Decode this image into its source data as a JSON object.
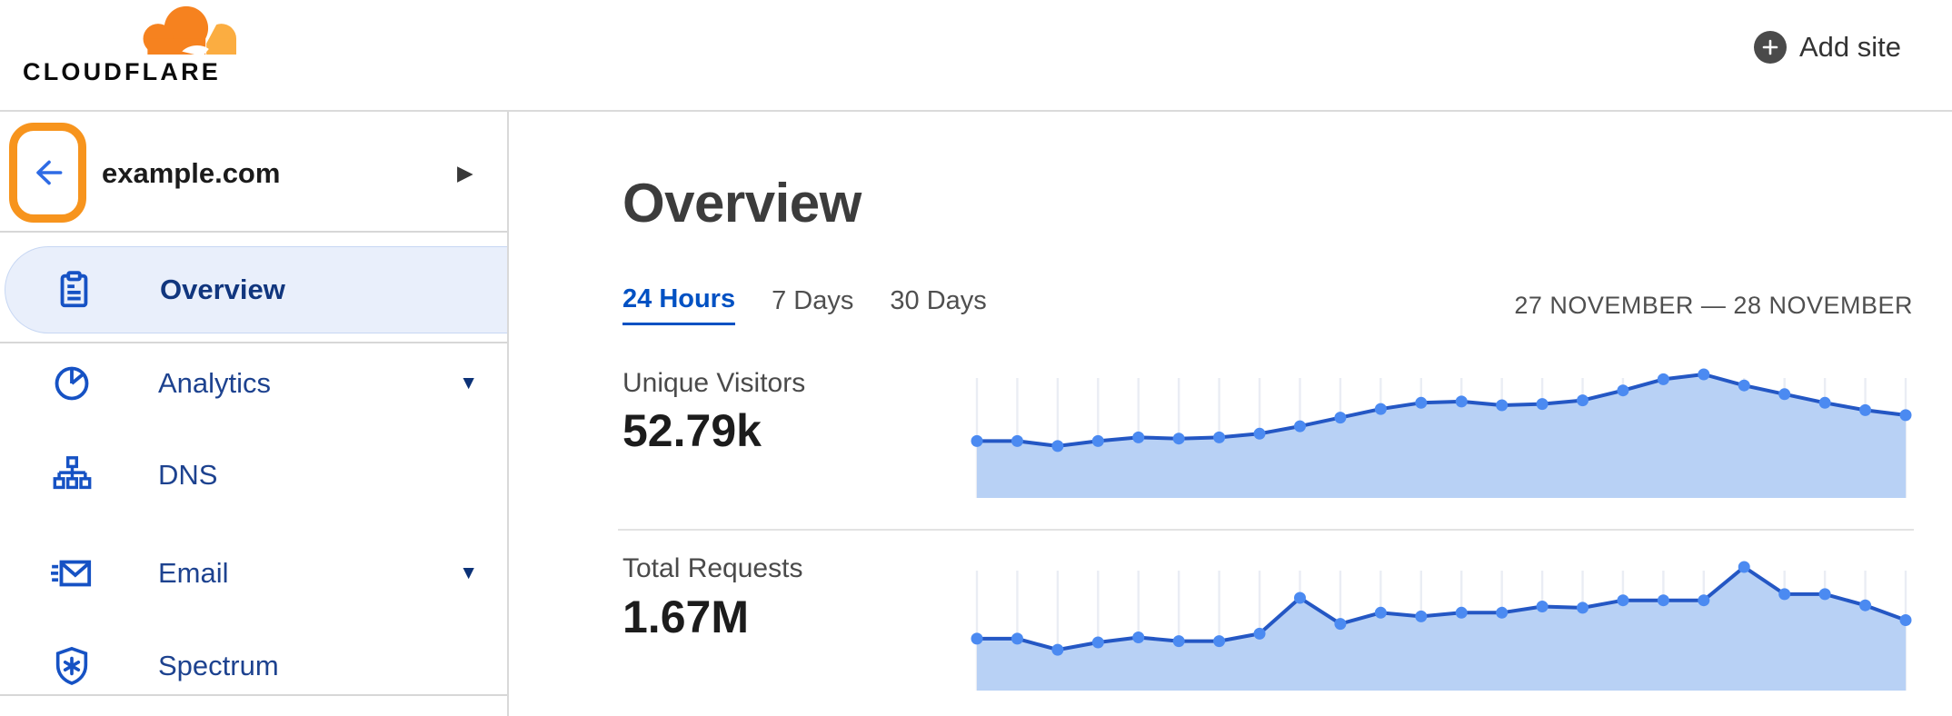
{
  "header": {
    "logo_text": "CLOUDFLARE",
    "add_site": {
      "label": "Add site",
      "icon": "plus-circle-icon"
    }
  },
  "sidebar": {
    "site_switcher": {
      "back_icon": "arrow-left-icon",
      "site_name": "example.com",
      "expand_icon": "caret-right-icon"
    },
    "items": [
      {
        "label": "Overview",
        "icon": "clipboard-icon",
        "active": true,
        "expandable": false
      },
      {
        "label": "Analytics",
        "icon": "pie-chart-icon",
        "active": false,
        "expandable": true
      },
      {
        "label": "DNS",
        "icon": "dns-tree-icon",
        "active": false,
        "expandable": false
      },
      {
        "label": "Email",
        "icon": "email-icon",
        "active": false,
        "expandable": true
      },
      {
        "label": "Spectrum",
        "icon": "shield-asterisk-icon",
        "active": false,
        "expandable": false
      }
    ]
  },
  "main": {
    "title": "Overview",
    "time_tabs": [
      {
        "label": "24 Hours",
        "active": true
      },
      {
        "label": "7 Days",
        "active": false
      },
      {
        "label": "30 Days",
        "active": false
      }
    ],
    "date_range": "27 NOVEMBER — 28 NOVEMBER",
    "metrics": [
      {
        "label": "Unique Visitors",
        "value": "52.79k"
      },
      {
        "label": "Total Requests",
        "value": "1.67M"
      }
    ]
  },
  "annotation": {
    "type": "highlight-box",
    "target": "back-button",
    "color": "#F7941D"
  },
  "icons": {
    "caret_right": "▶",
    "caret_down": "▼"
  },
  "colors": {
    "brand_orange": "#F6821F",
    "brand_orange_light": "#FBAD41",
    "highlight_orange": "#F7941D",
    "link_blue": "#0051C3",
    "nav_text": "#1D428F",
    "nav_text_active": "#11367E",
    "active_pill_bg": "#E9EFFB",
    "active_pill_border": "#C7D7F3",
    "chart_line": "#2457C4",
    "chart_dot": "#4B8AF1",
    "chart_fill": "#B8D1F5",
    "chart_grid": "#EAEDF4",
    "divider": "#D9D9D9"
  },
  "chart_data": [
    {
      "type": "area",
      "title": "Unique Visitors",
      "total_label": "52.79k",
      "x_desc": "24-hour window (27 November – 28 November), 24 evenly spaced intervals",
      "y_desc": "relative unique visitors per interval, % of peak (no axis labels shown)",
      "values": [
        46,
        46,
        42,
        46,
        49,
        48,
        49,
        52,
        58,
        65,
        72,
        77,
        78,
        75,
        76,
        79,
        87,
        96,
        100,
        91,
        84,
        77,
        71,
        67
      ],
      "grid": true,
      "dots": true,
      "legend": false
    },
    {
      "type": "area",
      "title": "Total Requests",
      "total_label": "1.67M",
      "x_desc": "24-hour window (27 November – 28 November), 24 evenly spaced intervals",
      "y_desc": "relative requests per interval, % of peak (no axis labels shown)",
      "values": [
        42,
        42,
        33,
        39,
        43,
        40,
        40,
        46,
        75,
        54,
        63,
        60,
        63,
        63,
        68,
        67,
        73,
        73,
        73,
        100,
        78,
        78,
        69,
        57
      ],
      "grid": true,
      "dots": true,
      "legend": false
    }
  ]
}
